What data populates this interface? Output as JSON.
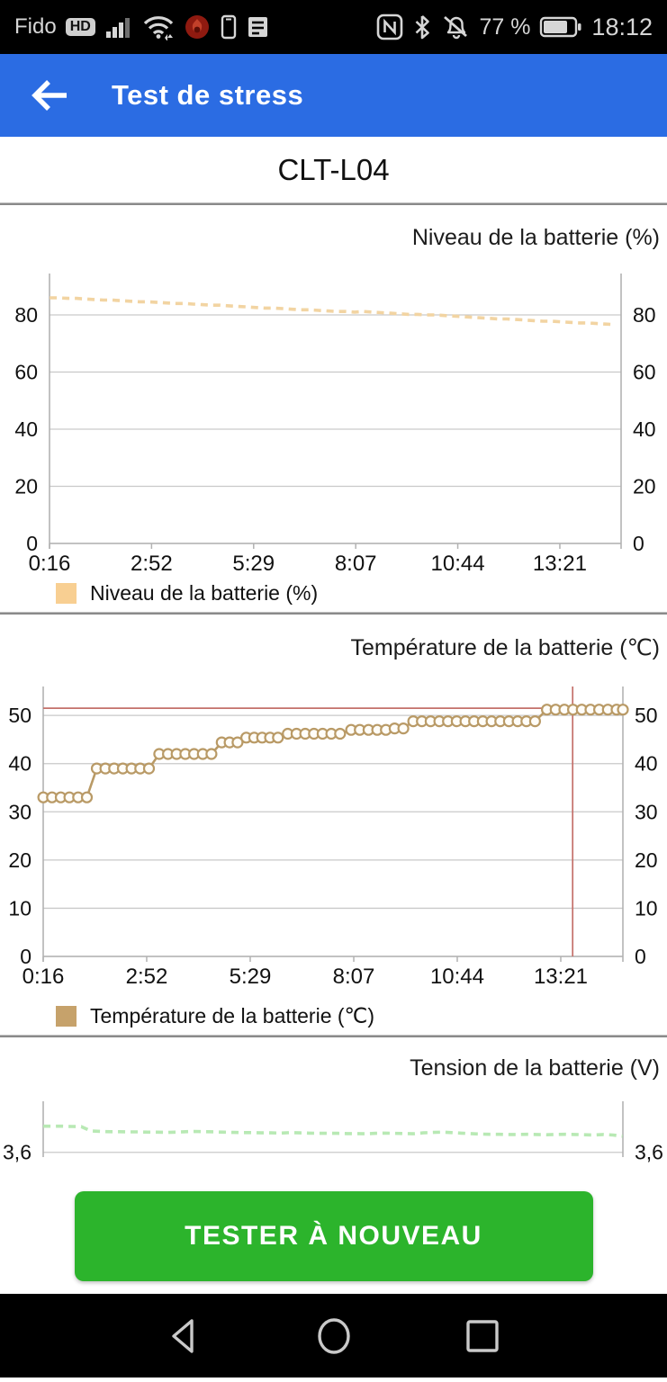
{
  "status_bar": {
    "carrier": "Fido",
    "hd": "HD",
    "battery_percent": "77 %",
    "time": "18:12"
  },
  "app_bar": {
    "title": "Test de stress"
  },
  "device": {
    "model": "CLT-L04"
  },
  "action": {
    "retest_label": "TESTER À NOUVEAU"
  },
  "colors": {
    "app_bar_blue": "#2b6ce3",
    "button_green": "#2cb42c",
    "level_line": "#f2d4a2",
    "level_legend": "#f8cf92",
    "temp_line": "#b99a66",
    "temp_legend": "#c6a26b",
    "alert_red": "#c4706a",
    "volt_line": "#b8e9b4"
  },
  "chart_data": [
    {
      "type": "line",
      "title": "Niveau de la batterie (%)",
      "legend": "Niveau de la batterie (%)",
      "line_color": "#f2d4a2",
      "legend_color": "#f8cf92",
      "style": "dashed",
      "marker": "none",
      "x_tick_labels": [
        "0:16",
        "2:52",
        "5:29",
        "8:07",
        "10:44",
        "13:21"
      ],
      "x_tick_hours": [
        0.267,
        2.883,
        5.5,
        8.117,
        10.733,
        13.35
      ],
      "xlim_hours": [
        0.267,
        14.92
      ],
      "y_ticks": [
        0,
        20,
        40,
        60,
        80
      ],
      "y_tick_labels": [
        "0",
        "20",
        "40",
        "60",
        "80"
      ],
      "ylim": [
        0,
        94.5
      ],
      "x": [
        0.27,
        0.5,
        0.73,
        0.96,
        1.19,
        1.42,
        1.65,
        1.88,
        2.11,
        2.34,
        2.57,
        2.8,
        3.03,
        3.26,
        3.49,
        3.72,
        3.95,
        4.18,
        4.41,
        4.64,
        4.87,
        5.1,
        5.33,
        5.56,
        5.79,
        6.02,
        6.25,
        6.48,
        6.71,
        6.94,
        7.17,
        7.4,
        7.63,
        7.86,
        8.09,
        8.32,
        8.55,
        8.78,
        9.01,
        9.24,
        9.47,
        9.7,
        9.93,
        10.16,
        10.39,
        10.62,
        10.85,
        11.08,
        11.31,
        11.54,
        11.77,
        12.0,
        12.23,
        12.46,
        12.69,
        12.92,
        13.15,
        13.38,
        13.61,
        13.84,
        14.07,
        14.3,
        14.53,
        14.76
      ],
      "y": [
        86.0,
        86.0,
        85.8,
        85.8,
        85.6,
        85.4,
        85.2,
        85.2,
        85.0,
        84.8,
        84.6,
        84.6,
        84.4,
        84.2,
        84.0,
        84.0,
        83.8,
        83.6,
        83.4,
        83.4,
        83.2,
        83.0,
        82.8,
        82.6,
        82.4,
        82.4,
        82.2,
        82.0,
        81.8,
        81.8,
        81.6,
        81.4,
        81.2,
        81.2,
        81.0,
        81.2,
        81.0,
        80.8,
        80.6,
        80.4,
        80.2,
        80.2,
        80.0,
        80.0,
        79.8,
        79.6,
        79.4,
        79.2,
        79.0,
        78.8,
        78.6,
        78.6,
        78.4,
        78.2,
        78.0,
        77.8,
        77.8,
        77.6,
        77.4,
        77.2,
        77.2,
        77.0,
        76.8,
        76.6
      ]
    },
    {
      "type": "line",
      "title": "Température de la batterie (℃)",
      "legend": "Température de la batterie (℃)",
      "line_color": "#b99a66",
      "legend_color": "#c6a26b",
      "style": "solid",
      "marker": "circle",
      "x_tick_labels": [
        "0:16",
        "2:52",
        "5:29",
        "8:07",
        "10:44",
        "13:21"
      ],
      "x_tick_hours": [
        0.267,
        2.883,
        5.5,
        8.117,
        10.733,
        13.35
      ],
      "xlim_hours": [
        0.267,
        14.92
      ],
      "y_ticks": [
        0,
        10,
        20,
        30,
        40,
        50
      ],
      "y_tick_labels": [
        "0",
        "10",
        "20",
        "30",
        "40",
        "50"
      ],
      "ylim": [
        0,
        56
      ],
      "hline": {
        "value": 51.5,
        "color": "#c4706a"
      },
      "vline": {
        "hour": 13.65,
        "color": "#c4706a"
      },
      "x": [
        0.27,
        0.49,
        0.71,
        0.93,
        1.15,
        1.37,
        1.62,
        1.84,
        2.06,
        2.28,
        2.5,
        2.72,
        2.94,
        3.2,
        3.42,
        3.64,
        3.86,
        4.08,
        4.3,
        4.52,
        4.78,
        4.98,
        5.18,
        5.4,
        5.6,
        5.8,
        6.0,
        6.2,
        6.45,
        6.67,
        6.89,
        7.11,
        7.33,
        7.55,
        7.77,
        8.05,
        8.27,
        8.49,
        8.71,
        8.93,
        9.15,
        9.37,
        9.62,
        9.84,
        10.06,
        10.28,
        10.5,
        10.72,
        10.94,
        11.16,
        11.38,
        11.6,
        11.82,
        12.04,
        12.26,
        12.48,
        12.7,
        13.0,
        13.22,
        13.44,
        13.66,
        13.88,
        14.1,
        14.32,
        14.54,
        14.76,
        14.92
      ],
      "y": [
        33,
        33,
        33,
        33,
        33,
        33,
        39,
        39,
        39,
        39,
        39,
        39,
        39,
        42,
        42,
        42,
        42,
        42,
        42,
        42,
        44.4,
        44.4,
        44.4,
        45.4,
        45.4,
        45.4,
        45.4,
        45.4,
        46.2,
        46.2,
        46.2,
        46.2,
        46.2,
        46.2,
        46.2,
        47,
        47,
        47,
        47,
        47,
        47.3,
        47.3,
        48.8,
        48.8,
        48.8,
        48.8,
        48.8,
        48.8,
        48.8,
        48.8,
        48.8,
        48.8,
        48.8,
        48.8,
        48.8,
        48.8,
        48.8,
        51.2,
        51.2,
        51.2,
        51.2,
        51.2,
        51.2,
        51.2,
        51.2,
        51.2,
        51.2
      ]
    },
    {
      "type": "line",
      "title": "Tension de la batterie (V)",
      "legend": "Tension de la batterie (V)",
      "line_color": "#b8e9b4",
      "legend_color": "#b8e9b4",
      "style": "dashed",
      "marker": "none",
      "x_tick_labels": [],
      "x_tick_hours": [],
      "xlim_hours": [
        0.267,
        14.92
      ],
      "y_ticks": [
        3.6
      ],
      "y_tick_labels": [
        "3,6"
      ],
      "ylim": [
        3.58,
        3.815
      ],
      "x": [
        0.27,
        0.51,
        0.75,
        0.99,
        1.23,
        1.47,
        1.71,
        1.95,
        2.19,
        2.43,
        2.67,
        2.91,
        3.15,
        3.39,
        3.63,
        3.87,
        4.11,
        4.35,
        4.59,
        4.83,
        5.07,
        5.31,
        5.55,
        5.79,
        6.03,
        6.27,
        6.51,
        6.75,
        6.99,
        7.23,
        7.47,
        7.71,
        7.95,
        8.19,
        8.43,
        8.67,
        8.91,
        9.15,
        9.39,
        9.63,
        9.87,
        10.11,
        10.35,
        10.59,
        10.83,
        11.07,
        11.31,
        11.55,
        11.79,
        12.03,
        12.27,
        12.51,
        12.75,
        12.99,
        13.23,
        13.47,
        13.71,
        13.95,
        14.19,
        14.43,
        14.67,
        14.91
      ],
      "y": [
        3.71,
        3.71,
        3.71,
        3.709,
        3.708,
        3.69,
        3.688,
        3.687,
        3.687,
        3.686,
        3.686,
        3.685,
        3.685,
        3.684,
        3.685,
        3.687,
        3.688,
        3.687,
        3.686,
        3.685,
        3.684,
        3.683,
        3.683,
        3.682,
        3.682,
        3.681,
        3.683,
        3.682,
        3.681,
        3.68,
        3.68,
        3.68,
        3.679,
        3.679,
        3.678,
        3.68,
        3.681,
        3.68,
        3.679,
        3.678,
        3.682,
        3.684,
        3.685,
        3.683,
        3.681,
        3.679,
        3.677,
        3.676,
        3.676,
        3.675,
        3.675,
        3.676,
        3.675,
        3.674,
        3.675,
        3.676,
        3.675,
        3.674,
        3.673,
        3.675,
        3.673,
        3.668
      ]
    }
  ]
}
